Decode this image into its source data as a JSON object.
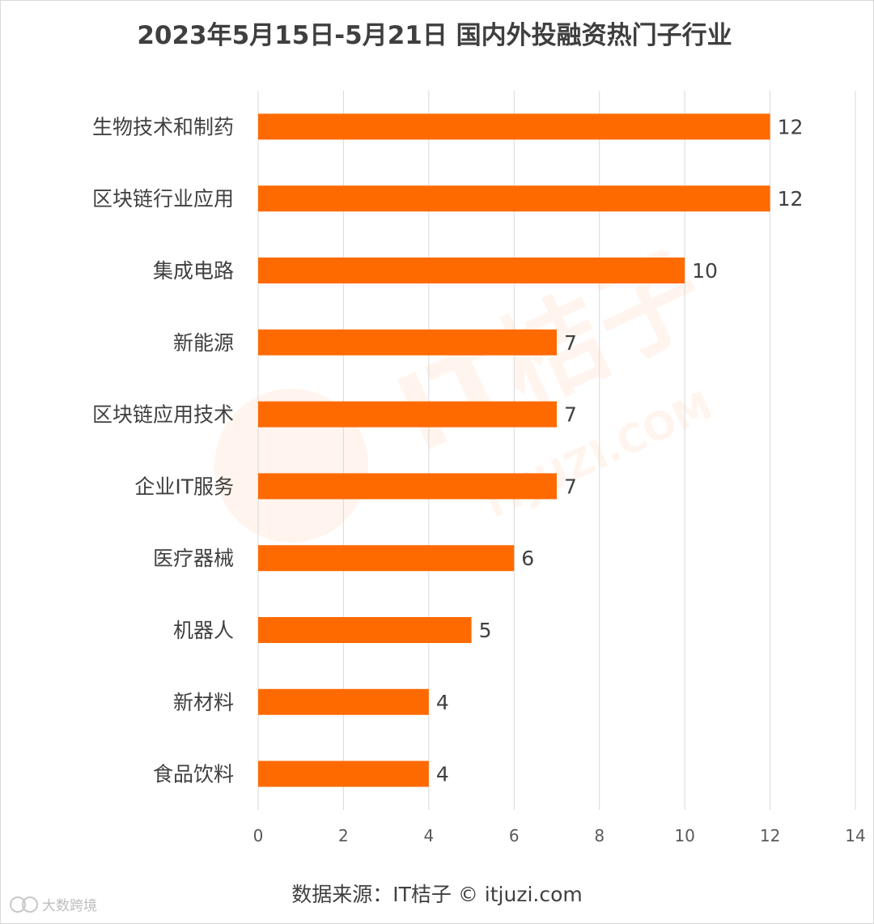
{
  "chart_data": {
    "type": "bar",
    "orientation": "horizontal",
    "title": "2023年5月15日-5月21日 国内外投融资热门子行业",
    "categories": [
      "生物技术和制药",
      "区块链行业应用",
      "集成电路",
      "新能源",
      "区块链应用技术",
      "企业IT服务",
      "医疗器械",
      "机器人",
      "新材料",
      "食品饮料"
    ],
    "values": [
      12,
      12,
      10,
      7,
      7,
      7,
      6,
      5,
      4,
      4
    ],
    "xlim": [
      0,
      14
    ],
    "xticks": [
      "0",
      "2",
      "4",
      "6",
      "8",
      "10",
      "12",
      "14"
    ],
    "xlabel": "",
    "ylabel": "",
    "grid": "vertical",
    "bar_color": "#ff6a00",
    "data_labels": true
  },
  "source_text": "数据来源：IT桔子 © itjuzi.com",
  "watermark": {
    "background_text": "IT桔子",
    "background_subtext": "ITJUZI.COM",
    "corner_text": "大数跨境",
    "corner_icon": "logo-icon"
  }
}
